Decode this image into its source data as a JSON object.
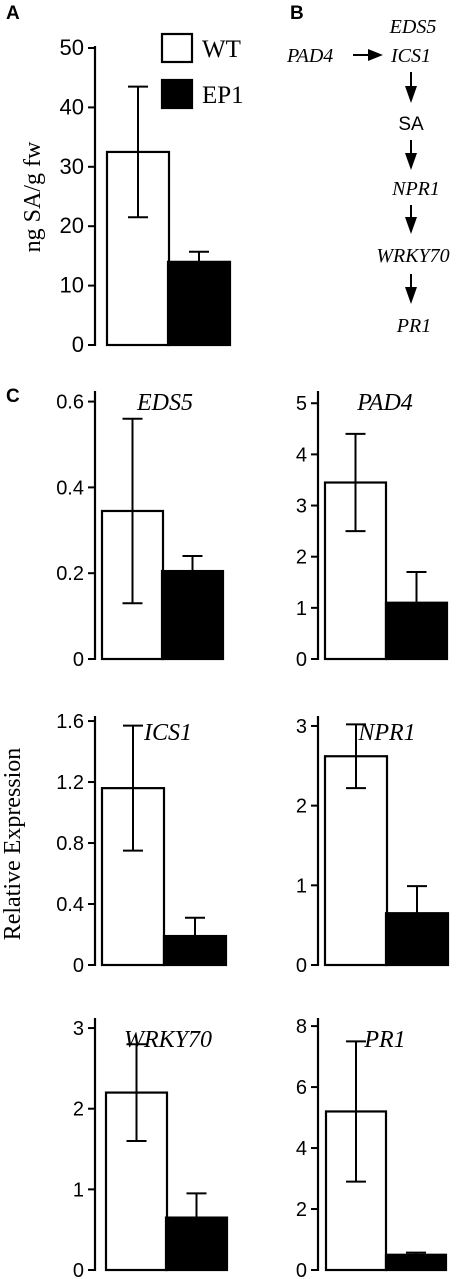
{
  "panels": {
    "a": "A",
    "b": "B",
    "c": "C"
  },
  "legend": {
    "wt": "WT",
    "ep1": "EP1"
  },
  "colors": {
    "wt": "#ffffff",
    "ep1": "#000000",
    "stroke": "#000000"
  },
  "pathway": {
    "eds5": "EDS5",
    "pad4": "PAD4",
    "ics1": "ICS1",
    "sa": "SA",
    "npr1": "NPR1",
    "wrky70": "WRKY70",
    "pr1": "PR1"
  },
  "shared_ylabel": "Relative Expression",
  "chart_data": [
    {
      "id": "sa",
      "type": "bar",
      "title": "",
      "ylabel": "ng SA/g fw",
      "categories": [
        "WT",
        "EP1"
      ],
      "values": [
        32.5,
        14
      ],
      "errors": [
        11,
        1.7
      ],
      "ylim": [
        0,
        50
      ],
      "yticks": [
        0,
        10,
        20,
        30,
        40,
        50
      ],
      "ytick_labels": [
        "0",
        "10",
        "20",
        "30",
        "40",
        "50"
      ],
      "legend": "top-right",
      "grid": false
    },
    {
      "id": "eds5",
      "type": "bar",
      "title": "EDS5",
      "categories": [
        "WT",
        "EP1"
      ],
      "values": [
        0.345,
        0.205
      ],
      "errors": [
        0.215,
        0.035
      ],
      "ylim": [
        0,
        0.62
      ],
      "yticks": [
        0,
        0.2,
        0.4,
        0.6
      ],
      "ytick_labels": [
        "0",
        "0.2",
        "0.4",
        "0.6"
      ],
      "grid": false
    },
    {
      "id": "pad4",
      "type": "bar",
      "title": "PAD4",
      "categories": [
        "WT",
        "EP1"
      ],
      "values": [
        3.45,
        1.1
      ],
      "errors": [
        0.95,
        0.6
      ],
      "ylim": [
        0,
        5.2
      ],
      "yticks": [
        0,
        1,
        2,
        3,
        4,
        5
      ],
      "ytick_labels": [
        "0",
        "1",
        "2",
        "3",
        "4",
        "5"
      ],
      "grid": false
    },
    {
      "id": "ics1",
      "type": "bar",
      "title": "ICS1",
      "categories": [
        "WT",
        "EP1"
      ],
      "values": [
        1.16,
        0.19
      ],
      "errors": [
        0.41,
        0.12
      ],
      "ylim": [
        0,
        1.62
      ],
      "yticks": [
        0,
        0.4,
        0.8,
        1.2,
        1.6
      ],
      "ytick_labels": [
        "0",
        "0.4",
        "0.8",
        "1.2",
        "1.6"
      ],
      "grid": false
    },
    {
      "id": "npr1",
      "type": "bar",
      "title": "NPR1",
      "categories": [
        "WT",
        "EP1"
      ],
      "values": [
        2.62,
        0.65
      ],
      "errors": [
        0.4,
        0.34
      ],
      "ylim": [
        0,
        3.1
      ],
      "yticks": [
        0,
        1,
        2,
        3
      ],
      "ytick_labels": [
        "0",
        "1",
        "2",
        "3"
      ],
      "grid": false
    },
    {
      "id": "wrky70",
      "type": "bar",
      "title": "WRKY70",
      "categories": [
        "WT",
        "EP1"
      ],
      "values": [
        2.2,
        0.65
      ],
      "errors": [
        0.6,
        0.3
      ],
      "ylim": [
        0,
        3.1
      ],
      "yticks": [
        0,
        1,
        2,
        3
      ],
      "ytick_labels": [
        "0",
        "1",
        "2",
        "3"
      ],
      "grid": false
    },
    {
      "id": "pr1",
      "type": "bar",
      "title": "PR1",
      "categories": [
        "WT",
        "EP1"
      ],
      "values": [
        5.2,
        0.5
      ],
      "errors": [
        2.3,
        0.07
      ],
      "ylim": [
        0,
        8.2
      ],
      "yticks": [
        0,
        2,
        4,
        6,
        8
      ],
      "ytick_labels": [
        "0",
        "2",
        "4",
        "6",
        "8"
      ],
      "grid": false
    }
  ]
}
